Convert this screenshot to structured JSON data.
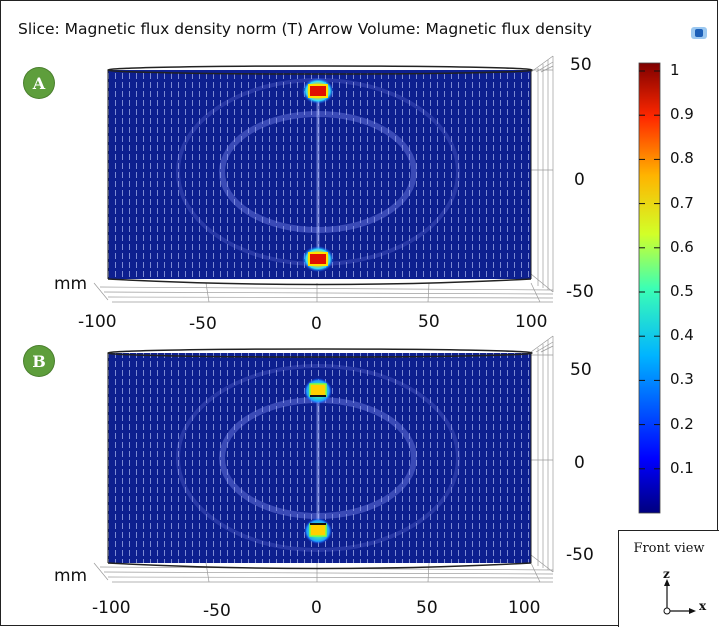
{
  "header": {
    "title": "Slice: Magnetic flux density norm (T)  Arrow Volume: Magnetic flux density"
  },
  "panels": [
    {
      "badge": "A",
      "unit": "mm",
      "x_ticks": [
        "-100",
        "-50",
        "0",
        "50",
        "100"
      ],
      "z_ticks": [
        "50",
        "0",
        "-50"
      ],
      "hotspot_intensity": 0.95
    },
    {
      "badge": "B",
      "unit": "mm",
      "x_ticks": [
        "-100",
        "-50",
        "0",
        "50",
        "100"
      ],
      "z_ticks": [
        "50",
        "0",
        "-50"
      ],
      "hotspot_intensity": 0.6
    }
  ],
  "colorbar": {
    "ticks": [
      "1",
      "0.9",
      "0.8",
      "0.7",
      "0.6",
      "0.5",
      "0.4",
      "0.3",
      "0.2",
      "0.1"
    ],
    "min": 0,
    "max": 1
  },
  "view_widget": {
    "title": "Front view",
    "z_axis": "z",
    "x_axis": "x"
  },
  "colors": {
    "field_background": "#0d1f8f",
    "arrow": "#c8d2ff",
    "badge": "#5e9e3c"
  }
}
